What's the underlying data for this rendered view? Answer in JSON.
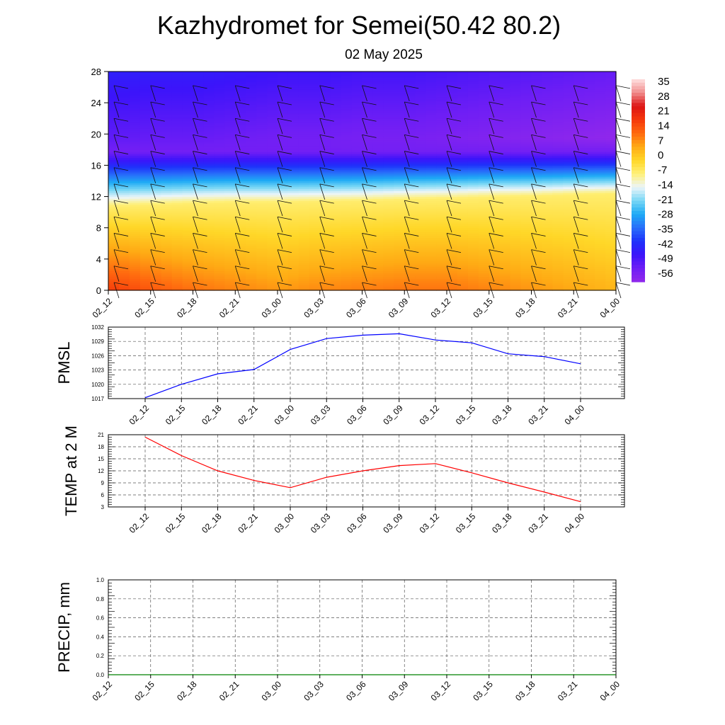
{
  "title": "Kazhydromet for Semei(50.42 80.2)",
  "subtitle": "02 May 2025",
  "time_labels": [
    "02_12",
    "02_15",
    "02_18",
    "02_21",
    "03_00",
    "03_03",
    "03_06",
    "03_09",
    "03_12",
    "03_15",
    "03_18",
    "03_21",
    "04_00"
  ],
  "chart_data": [
    {
      "type": "heatmap",
      "description_role": "vertical cross-section of temperature with wind barbs",
      "x": [
        "02_12",
        "02_15",
        "02_18",
        "02_21",
        "03_00",
        "03_03",
        "03_06",
        "03_09",
        "03_12",
        "03_15",
        "03_18",
        "03_21",
        "04_00"
      ],
      "yticks": [
        0,
        4,
        8,
        12,
        16,
        20,
        24,
        28
      ],
      "ylim": [
        0,
        28
      ],
      "colorbar": {
        "labels": [
          "35",
          "28",
          "21",
          "14",
          "7",
          "0",
          "-7",
          "-14",
          "-21",
          "-28",
          "-35",
          "-42",
          "-49",
          "-56"
        ],
        "range": [
          -63,
          42
        ]
      },
      "freezing_level": [
        10.8,
        11.0,
        11.2,
        11.3,
        11.3,
        11.4,
        11.5,
        11.7,
        11.8,
        12.0,
        12.1,
        12.3,
        12.4
      ],
      "tropopause_level": 17.8,
      "surface_temp": [
        20,
        16,
        13,
        11,
        9,
        11,
        12,
        13,
        13,
        11,
        9,
        7,
        5
      ],
      "top_temp": [
        -52,
        -53,
        -53,
        -54,
        -55,
        -55,
        -56,
        -56,
        -57,
        -58,
        -59,
        -60,
        -61
      ],
      "grid": true
    },
    {
      "type": "line",
      "ylabel": "PMSL",
      "x": [
        "02_12",
        "02_15",
        "02_18",
        "02_21",
        "03_00",
        "03_03",
        "03_06",
        "03_09",
        "03_12",
        "03_15",
        "03_18",
        "03_21",
        "04_00"
      ],
      "yticks": [
        1017,
        1020,
        1023,
        1026,
        1029,
        1032
      ],
      "ylim": [
        1017,
        1032
      ],
      "series": [
        {
          "color": "#0000ff",
          "values": [
            1017.2,
            1020.0,
            1022.2,
            1023.1,
            1027.3,
            1029.6,
            1030.3,
            1030.6,
            1029.3,
            1028.7,
            1026.4,
            1025.8,
            1024.3
          ]
        }
      ],
      "grid": true
    },
    {
      "type": "line",
      "ylabel": "TEMP at 2 M",
      "x": [
        "02_12",
        "02_15",
        "02_18",
        "02_21",
        "03_00",
        "03_03",
        "03_06",
        "03_09",
        "03_12",
        "03_15",
        "03_18",
        "03_21",
        "04_00"
      ],
      "yticks": [
        3,
        6,
        9,
        12,
        15,
        18,
        21
      ],
      "ylim": [
        3,
        21
      ],
      "series": [
        {
          "color": "#ff0000",
          "values": [
            20.4,
            15.8,
            12.0,
            9.6,
            7.8,
            10.4,
            12.0,
            13.3,
            13.8,
            11.5,
            9.0,
            6.7,
            4.3
          ]
        }
      ],
      "grid": true
    },
    {
      "type": "line",
      "ylabel": "PRECIP, mm",
      "x": [
        "02_12",
        "02_15",
        "02_18",
        "02_21",
        "03_00",
        "03_03",
        "03_06",
        "03_09",
        "03_12",
        "03_15",
        "03_18",
        "03_21",
        "04_00"
      ],
      "yticks": [
        "0.0",
        "0.2",
        "0.4",
        "0.6",
        "0.8",
        "1.0"
      ],
      "ylim": [
        0,
        1
      ],
      "series": [
        {
          "color": "#008000",
          "values": [
            0,
            0,
            0,
            0,
            0,
            0,
            0,
            0,
            0,
            0,
            0,
            0,
            0
          ]
        }
      ],
      "grid": true
    }
  ]
}
